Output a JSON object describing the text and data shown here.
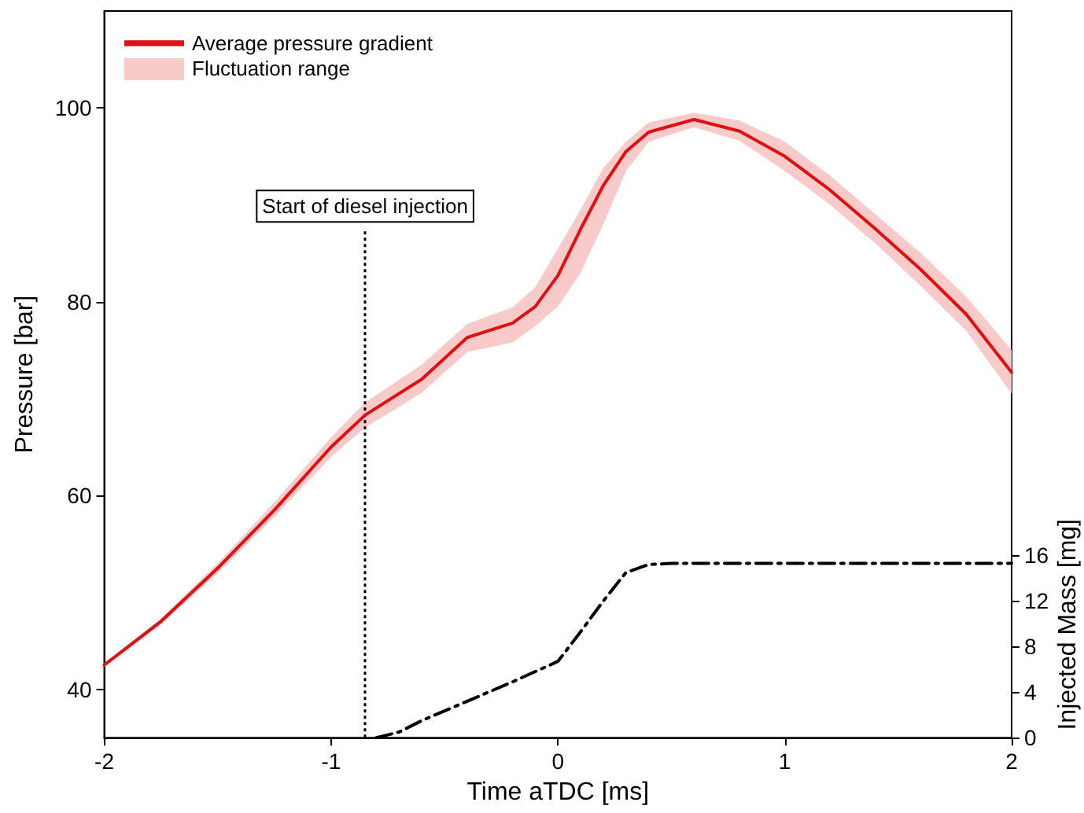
{
  "chart_data": {
    "type": "line",
    "xlabel": "Time aTDC [ms]",
    "ylabel": "Pressure [bar]",
    "y2label": "Injected Mass [mg]",
    "xlim": [
      -2,
      2
    ],
    "xticks": [
      -2,
      -1,
      0,
      1,
      2
    ],
    "ylim": [
      35,
      110
    ],
    "yticks": [
      40,
      60,
      80,
      100
    ],
    "y2lim": [
      0,
      63.8
    ],
    "y2ticks": [
      0,
      4,
      8,
      12,
      16
    ],
    "grid": false,
    "legend": "top left",
    "marker": "none",
    "annotations": [
      "Fluctuation range"
    ],
    "series": [
      {
        "name": "Average pressure gradient",
        "color": "#e01010",
        "line_style": "solid",
        "x": [
          -2,
          -1.75,
          -1.5,
          -1.25,
          -1,
          -0.85,
          -0.6,
          -0.4,
          -0.2,
          -0.1,
          0,
          0.1,
          0.2,
          0.3,
          0.4,
          0.6,
          0.8,
          1,
          1.2,
          1.4,
          1.6,
          1.8,
          2
        ],
        "values": [
          42.5,
          47,
          52.5,
          58.5,
          65,
          68.3,
          72,
          76.3,
          77.8,
          79.5,
          82.7,
          87.5,
          92,
          95.5,
          97.5,
          98.8,
          97.6,
          95,
          91.5,
          87.5,
          83.3,
          78.7,
          72.7
        ],
        "lower": [
          42.3,
          46.7,
          52,
          57.8,
          64,
          67,
          70.6,
          74.8,
          75.8,
          77.5,
          79.5,
          83,
          88,
          93.5,
          96.5,
          98,
          96.6,
          93.5,
          90,
          86,
          81.6,
          77,
          70.5
        ],
        "upper": [
          42.7,
          47.3,
          53,
          59.3,
          66,
          69.6,
          73.5,
          77.7,
          79.4,
          81.5,
          85.5,
          89.5,
          93.8,
          96.5,
          98.5,
          99.5,
          98.7,
          96.5,
          93,
          89,
          85,
          80.5,
          75
        ]
      },
      {
        "type": "line",
        "axis": "y2",
        "color": "#000000",
        "line_style": "dashed",
        "x": [
          -0.8,
          -0.7,
          -0.6,
          -0.4,
          -0.2,
          0,
          0.1,
          0.2,
          0.3,
          0.4,
          0.5,
          2
        ],
        "values": [
          0,
          0.5,
          1.5,
          3.2,
          4.9,
          6.7,
          9.3,
          12,
          14.5,
          15.2,
          15.3,
          15.3
        ]
      }
    ],
    "ref_lines": [
      {
        "axis": "x",
        "value": -0.85,
        "label": "Start of diesel injection",
        "line_style": "dotted",
        "color": "#000000"
      }
    ]
  }
}
